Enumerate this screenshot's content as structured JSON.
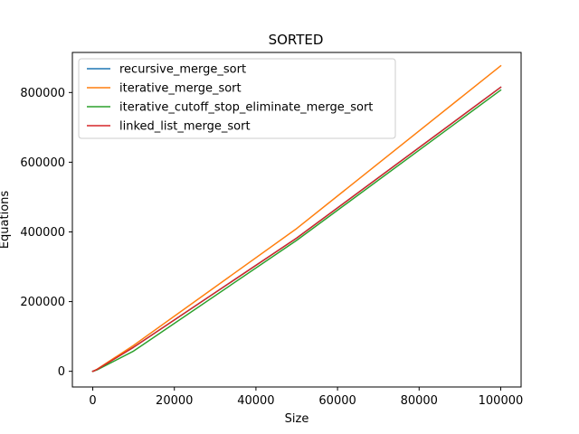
{
  "chart_data": {
    "type": "line",
    "title": "SORTED",
    "xlabel": "Size",
    "ylabel": "Equations",
    "xlim": [
      -5000,
      105000
    ],
    "ylim": [
      -45000,
      915000
    ],
    "xticks": [
      0,
      20000,
      40000,
      60000,
      80000,
      100000
    ],
    "yticks": [
      0,
      200000,
      400000,
      600000,
      800000
    ],
    "grid": false,
    "legend_position": "top-left",
    "x": [
      0,
      10,
      100,
      1000,
      10000,
      50000,
      100000
    ],
    "series": [
      {
        "name": "recursive_merge_sort",
        "color": "#1f77b4",
        "values": [
          0,
          15,
          316,
          5044,
          69008,
          382512,
          815024
        ]
      },
      {
        "name": "iterative_merge_sort",
        "color": "#ff7f0e",
        "values": [
          0,
          19,
          356,
          5524,
          74432,
          409776,
          876672
        ]
      },
      {
        "name": "iterative_cutoff_stop_eliminate_merge_sort",
        "color": "#2ca02c",
        "values": [
          0,
          10,
          200,
          3800,
          58000,
          376000,
          807000
        ]
      },
      {
        "name": "linked_list_merge_sort",
        "color": "#d62728",
        "values": [
          0,
          15,
          316,
          5044,
          69008,
          382512,
          815024
        ]
      }
    ]
  }
}
